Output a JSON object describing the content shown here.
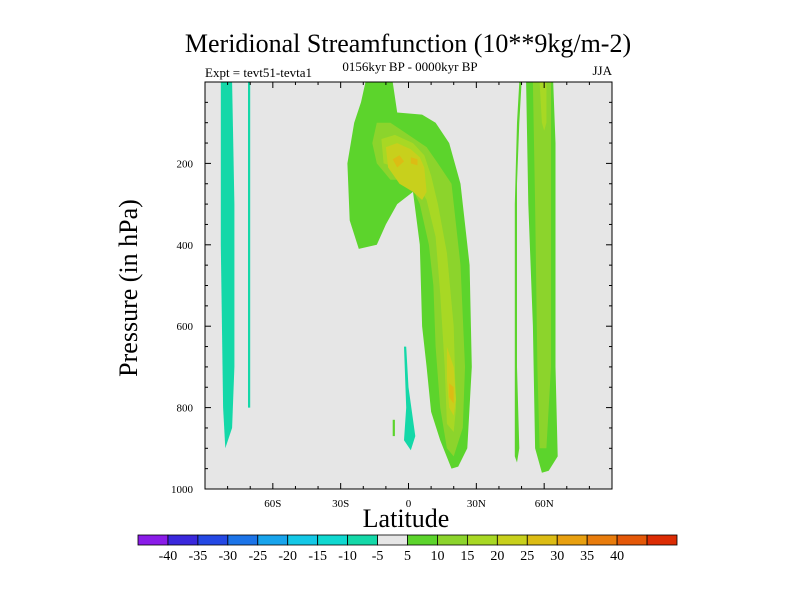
{
  "chart_data": {
    "type": "heatmap",
    "title": "Meridional Streamfunction (10**9kg/m-2)",
    "subtitle_left": "Expt = tevt51-tevta1",
    "subtitle_center": "0156kyr BP - 0000kyr BP",
    "subtitle_right": "JJA",
    "xlabel": "Latitude",
    "ylabel": "Pressure (in hPa)",
    "xlim": [
      -90,
      90
    ],
    "ylim": [
      0,
      1000
    ],
    "y_inverted": true,
    "x_ticks": [
      {
        "value": -60,
        "label": "60S"
      },
      {
        "value": -30,
        "label": "30S"
      },
      {
        "value": 0,
        "label": "0"
      },
      {
        "value": 30,
        "label": "30N"
      },
      {
        "value": 60,
        "label": "60N"
      }
    ],
    "y_ticks": [
      {
        "value": 200,
        "label": "200"
      },
      {
        "value": 400,
        "label": "400"
      },
      {
        "value": 600,
        "label": "600"
      },
      {
        "value": 800,
        "label": "800"
      },
      {
        "value": 1000,
        "label": "1000"
      }
    ],
    "background_fill": "#e6e6e6",
    "colorbar": {
      "colors": [
        "#8a1ce8",
        "#3a28dc",
        "#2448e4",
        "#1c74e8",
        "#18a4ec",
        "#14c8e6",
        "#10d8d0",
        "#14d8a8",
        "#e6e6e6",
        "#5cd42c",
        "#8cd42c",
        "#a8d824",
        "#c8d01c",
        "#dcbc14",
        "#e8a010",
        "#e87c0c",
        "#e45808",
        "#dc2c04"
      ],
      "labels": [
        "-40",
        "-35",
        "-30",
        "-25",
        "-20",
        "-15",
        "-10",
        "-5",
        "5",
        "10",
        "15",
        "20",
        "25",
        "30",
        "35",
        "40"
      ]
    },
    "regions": [
      {
        "level": -5,
        "color": "#14d8a8",
        "points": [
          [
            -83,
            0
          ],
          [
            -78,
            0
          ],
          [
            -77,
            300
          ],
          [
            -77,
            700
          ],
          [
            -78,
            850
          ],
          [
            -81,
            900
          ],
          [
            -82,
            800
          ],
          [
            -83,
            400
          ]
        ]
      },
      {
        "level": -5,
        "color": "#14d8a8",
        "points": [
          [
            -71,
            0
          ],
          [
            -70,
            0
          ],
          [
            -70,
            800
          ],
          [
            -71,
            800
          ]
        ]
      },
      {
        "level": -5,
        "color": "#14d8a8",
        "points": [
          [
            -2,
            650
          ],
          [
            -1,
            650
          ],
          [
            0,
            750
          ],
          [
            3,
            870
          ],
          [
            1,
            905
          ],
          [
            -2,
            880
          ],
          [
            -1,
            800
          ]
        ]
      },
      {
        "level": 5,
        "color": "#5cd42c",
        "points": [
          [
            -19,
            0
          ],
          [
            -7,
            0
          ],
          [
            -5,
            75
          ],
          [
            6,
            80
          ],
          [
            12,
            100
          ],
          [
            18,
            150
          ],
          [
            23,
            250
          ],
          [
            27,
            450
          ],
          [
            28,
            700
          ],
          [
            26,
            900
          ],
          [
            22,
            945
          ],
          [
            19,
            950
          ],
          [
            14,
            880
          ],
          [
            10,
            810
          ],
          [
            8,
            700
          ],
          [
            6,
            600
          ],
          [
            5,
            400
          ],
          [
            2,
            270
          ],
          [
            -5,
            300
          ],
          [
            -10,
            350
          ],
          [
            -14,
            400
          ],
          [
            -22,
            410
          ],
          [
            -26,
            340
          ],
          [
            -27,
            200
          ],
          [
            -24,
            100
          ],
          [
            -21,
            50
          ]
        ]
      },
      {
        "level": 5,
        "color": "#5cd42c",
        "points": [
          [
            52,
            0
          ],
          [
            64,
            0
          ],
          [
            65,
            150
          ],
          [
            65,
            700
          ],
          [
            66,
            920
          ],
          [
            62,
            955
          ],
          [
            59,
            960
          ],
          [
            56,
            900
          ],
          [
            55,
            600
          ],
          [
            53,
            300
          ]
        ]
      },
      {
        "level": 5,
        "color": "#5cd42c",
        "points": [
          [
            49,
            0
          ],
          [
            50,
            0
          ],
          [
            49,
            100
          ],
          [
            48,
            250
          ],
          [
            48,
            700
          ],
          [
            49,
            900
          ],
          [
            48,
            935
          ],
          [
            47,
            920
          ],
          [
            47,
            600
          ],
          [
            47,
            300
          ],
          [
            48,
            100
          ]
        ]
      },
      {
        "level": 5,
        "color": "#5cd42c",
        "points": [
          [
            -7,
            830
          ],
          [
            -6,
            830
          ],
          [
            -6,
            870
          ],
          [
            -7,
            870
          ]
        ]
      },
      {
        "level": 10,
        "color": "#8cd42c",
        "points": [
          [
            -14,
            100
          ],
          [
            -8,
            100
          ],
          [
            0,
            130
          ],
          [
            8,
            160
          ],
          [
            13,
            200
          ],
          [
            19,
            250
          ],
          [
            23,
            450
          ],
          [
            25,
            700
          ],
          [
            24,
            850
          ],
          [
            20,
            920
          ],
          [
            17,
            900
          ],
          [
            14,
            800
          ],
          [
            12,
            650
          ],
          [
            11,
            500
          ],
          [
            9,
            400
          ],
          [
            5,
            300
          ],
          [
            0,
            240
          ],
          [
            -8,
            240
          ],
          [
            -14,
            200
          ],
          [
            -16,
            150
          ]
        ]
      },
      {
        "level": 10,
        "color": "#8cd42c",
        "points": [
          [
            55,
            0
          ],
          [
            63,
            0
          ],
          [
            63,
            700
          ],
          [
            61,
            900
          ],
          [
            58,
            900
          ],
          [
            57,
            700
          ],
          [
            56,
            300
          ]
        ]
      },
      {
        "level": 15,
        "color": "#a8d824",
        "points": [
          [
            -12,
            140
          ],
          [
            -6,
            130
          ],
          [
            2,
            150
          ],
          [
            7,
            180
          ],
          [
            10,
            230
          ],
          [
            13,
            300
          ],
          [
            17,
            420
          ],
          [
            20,
            600
          ],
          [
            21,
            800
          ],
          [
            20,
            860
          ],
          [
            17,
            840
          ],
          [
            16,
            700
          ],
          [
            14,
            520
          ],
          [
            12,
            380
          ],
          [
            8,
            290
          ],
          [
            3,
            240
          ],
          [
            -5,
            210
          ],
          [
            -11,
            200
          ]
        ]
      },
      {
        "level": 15,
        "color": "#a8d824",
        "points": [
          [
            58,
            0
          ],
          [
            61,
            0
          ],
          [
            61,
            100
          ],
          [
            60,
            120
          ],
          [
            59,
            100
          ]
        ]
      },
      {
        "level": 20,
        "color": "#c8d01c",
        "points": [
          [
            -10,
            160
          ],
          [
            -5,
            150
          ],
          [
            1,
            165
          ],
          [
            5,
            185
          ],
          [
            7,
            210
          ],
          [
            8,
            270
          ],
          [
            6,
            290
          ],
          [
            2,
            270
          ],
          [
            -4,
            250
          ],
          [
            -9,
            210
          ]
        ]
      },
      {
        "level": 20,
        "color": "#c8d01c",
        "points": [
          [
            17,
            650
          ],
          [
            20,
            700
          ],
          [
            21,
            780
          ],
          [
            20,
            820
          ],
          [
            18,
            800
          ],
          [
            17,
            730
          ]
        ]
      },
      {
        "level": 25,
        "color": "#dcbc14",
        "points": [
          [
            -7,
            190
          ],
          [
            -4,
            180
          ],
          [
            -2,
            195
          ],
          [
            -5,
            210
          ]
        ]
      },
      {
        "level": 25,
        "color": "#dcbc14",
        "points": [
          [
            1,
            185
          ],
          [
            4,
            190
          ],
          [
            4,
            205
          ],
          [
            1,
            200
          ]
        ]
      },
      {
        "level": 25,
        "color": "#dcbc14",
        "points": [
          [
            18,
            740
          ],
          [
            20,
            750
          ],
          [
            20,
            790
          ],
          [
            18,
            775
          ]
        ]
      }
    ]
  }
}
